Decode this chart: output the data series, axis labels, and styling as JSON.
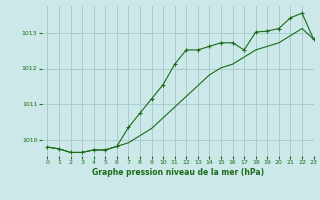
{
  "title": "Graphe pression niveau de la mer (hPa)",
  "bg_color": "#cce8e8",
  "grid_color": "#aacccc",
  "line_color": "#1a6b1a",
  "xlim": [
    -0.5,
    23
  ],
  "ylim": [
    1009.55,
    1013.75
  ],
  "yticks": [
    1010,
    1011,
    1012,
    1013
  ],
  "xticks": [
    0,
    1,
    2,
    3,
    4,
    5,
    6,
    7,
    8,
    9,
    10,
    11,
    12,
    13,
    14,
    15,
    16,
    17,
    18,
    19,
    20,
    21,
    22,
    23
  ],
  "series1_x": [
    0,
    1,
    2,
    3,
    4,
    5,
    6,
    7,
    8,
    9,
    10,
    11,
    12,
    13,
    14,
    15,
    16,
    17,
    18,
    19,
    20,
    21,
    22,
    23
  ],
  "series1_y": [
    1009.8,
    1009.75,
    1009.65,
    1009.65,
    1009.72,
    1009.72,
    1009.82,
    1010.35,
    1010.75,
    1011.15,
    1011.55,
    1012.12,
    1012.52,
    1012.52,
    1012.62,
    1012.72,
    1012.72,
    1012.52,
    1013.02,
    1013.05,
    1013.12,
    1013.42,
    1013.55,
    1012.82
  ],
  "series2_x": [
    0,
    1,
    2,
    3,
    4,
    5,
    6,
    7,
    8,
    9,
    10,
    11,
    12,
    13,
    14,
    15,
    16,
    17,
    18,
    19,
    20,
    21,
    22,
    23
  ],
  "series2_y": [
    1009.8,
    1009.75,
    1009.65,
    1009.65,
    1009.72,
    1009.72,
    1009.82,
    1009.92,
    1010.12,
    1010.32,
    1010.62,
    1010.92,
    1011.22,
    1011.52,
    1011.82,
    1012.02,
    1012.12,
    1012.32,
    1012.52,
    1012.62,
    1012.72,
    1012.92,
    1013.12,
    1012.82
  ],
  "xlabel_fontsize": 5.5,
  "tick_fontsize": 4.5,
  "title_color": "#1a6b1a",
  "axis_label_color": "#1a6b1a"
}
